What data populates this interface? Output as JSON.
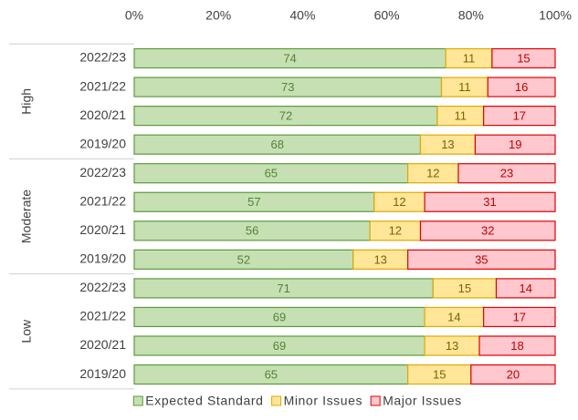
{
  "chart_data": {
    "type": "stacked-barh",
    "categories": [
      "2022/23",
      "2021/22",
      "2020/21",
      "2019/20",
      "2022/23",
      "2021/22",
      "2020/21",
      "2019/20",
      "2022/23",
      "2021/22",
      "2020/21",
      "2019/20"
    ],
    "groups": [
      "High",
      "Moderate",
      "Low"
    ],
    "series": [
      {
        "name": "Expected Standard",
        "color": "#c6e0b4",
        "edge": "#5b9b3a",
        "label_color": "#548235",
        "values": [
          74,
          73,
          72,
          68,
          65,
          57,
          56,
          52,
          71,
          69,
          69,
          65
        ]
      },
      {
        "name": "Minor Issues",
        "color": "#ffe699",
        "edge": "#e0a800",
        "label_color": "#7f6000",
        "values": [
          11,
          11,
          11,
          13,
          12,
          12,
          12,
          13,
          15,
          14,
          13,
          15
        ]
      },
      {
        "name": "Major Issues",
        "color": "#ffc7ce",
        "edge": "#e00000",
        "label_color": "#c00000",
        "values": [
          15,
          16,
          17,
          19,
          23,
          31,
          32,
          35,
          14,
          17,
          18,
          20
        ]
      }
    ],
    "xlim": [
      0,
      100
    ],
    "xticks": [
      {
        "value": 0,
        "label": "0%"
      },
      {
        "value": 20,
        "label": "20%"
      },
      {
        "value": 40,
        "label": "40%"
      },
      {
        "value": 60,
        "label": "60%"
      },
      {
        "value": 80,
        "label": "80%"
      },
      {
        "value": 100,
        "label": "100%"
      }
    ],
    "legend": "bottom"
  }
}
